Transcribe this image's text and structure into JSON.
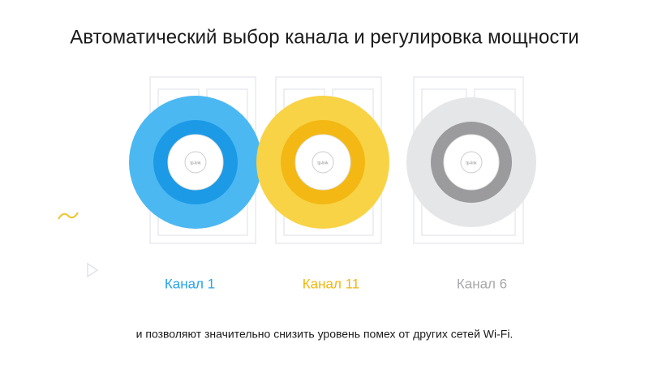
{
  "title": "Автоматический выбор канала и регулировка мощности",
  "channels": [
    {
      "label": "Канал 1"
    },
    {
      "label": "Канал 11"
    },
    {
      "label": "Канал 6"
    }
  ],
  "device_logo": "tp-link",
  "caption": "и позволяют значительно снизить уровень помех от других сетей Wi-Fi."
}
